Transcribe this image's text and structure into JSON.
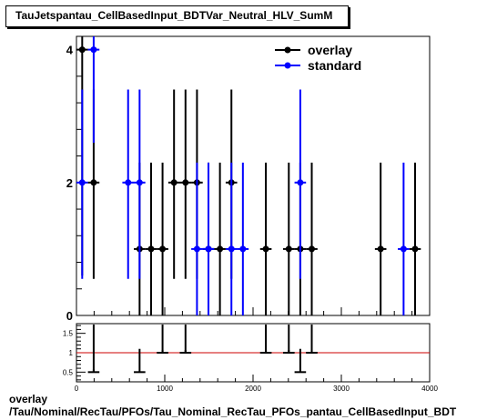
{
  "title": "TauJetspantau_CellBasedInput_BDTVar_Neutral_HLV_SumM",
  "caption": {
    "line1": "overlay",
    "line2": "/Tau/Nominal/RecTau/PFOs/Tau_Nominal_RecTau_PFOs_pantau_CellBasedInput_BDT"
  },
  "colors": {
    "overlay": "#000000",
    "standard": "#0000ff",
    "ratio_line": "#cc0000"
  },
  "chart_data": [
    {
      "type": "scatter",
      "title": "TauJetspantau_CellBasedInput_BDTVar_Neutral_HLV_SumM",
      "xlim": [
        0,
        4000
      ],
      "ylim": [
        0,
        4.2
      ],
      "y_ticks": [
        0,
        2,
        4
      ],
      "x_tick_labels": [],
      "legend_position": "top-right",
      "series": [
        {
          "name": "overlay",
          "color": "#000000",
          "x_err": 65,
          "points": [
            [
              65,
              4,
              0.6,
              5.2
            ],
            [
              195,
              2,
              0.55,
              3.4
            ],
            [
              715,
              1,
              0,
              2.3
            ],
            [
              845,
              1,
              0,
              2.3
            ],
            [
              975,
              1,
              0,
              2.3
            ],
            [
              1105,
              2,
              0.55,
              3.4
            ],
            [
              1235,
              2,
              0.55,
              3.4
            ],
            [
              1365,
              2,
              0.55,
              3.4
            ],
            [
              1495,
              1,
              0,
              2.3
            ],
            [
              1625,
              1,
              0,
              2.3
            ],
            [
              1755,
              2,
              0.55,
              3.4
            ],
            [
              2145,
              1,
              0,
              2.3
            ],
            [
              2405,
              1,
              0,
              2.3
            ],
            [
              2535,
              1,
              0,
              2.3
            ],
            [
              2665,
              1,
              0,
              2.3
            ],
            [
              3445,
              1,
              0,
              2.3
            ],
            [
              3835,
              1,
              0,
              2.3
            ]
          ]
        },
        {
          "name": "standard",
          "color": "#0000ff",
          "x_err": 65,
          "points": [
            [
              65,
              2,
              0.55,
              3.4
            ],
            [
              195,
              4,
              2.6,
              5.2
            ],
            [
              585,
              2,
              0.55,
              3.4
            ],
            [
              715,
              2,
              0.55,
              3.4
            ],
            [
              1365,
              1,
              0,
              2.3
            ],
            [
              1495,
              1,
              0,
              2.3
            ],
            [
              1755,
              1,
              0,
              2.3
            ],
            [
              1885,
              1,
              0,
              2.3
            ],
            [
              2535,
              2,
              0.55,
              3.4
            ],
            [
              3705,
              1,
              0,
              2.3
            ]
          ]
        }
      ]
    },
    {
      "type": "scatter",
      "xlim": [
        0,
        4000
      ],
      "ylim": [
        0.25,
        1.75
      ],
      "y_tick_labels": [
        "0.5",
        "1",
        "1.5"
      ],
      "x_tick_labels": [
        "0",
        "1000",
        "2000",
        "3000",
        "4000"
      ],
      "reference_line": 1,
      "series": [
        {
          "name": "ratio",
          "color": "#000000",
          "x_err": 65,
          "points": [
            [
              195,
              0.5,
              null,
              null
            ],
            [
              715,
              0.5,
              null,
              1.1
            ],
            [
              975,
              1,
              null,
              null
            ],
            [
              1235,
              1,
              null,
              null
            ],
            [
              2145,
              1,
              null,
              null
            ],
            [
              2405,
              1,
              null,
              null
            ],
            [
              2535,
              0.5,
              null,
              1.1
            ],
            [
              2665,
              1,
              null,
              null
            ]
          ]
        }
      ]
    }
  ]
}
